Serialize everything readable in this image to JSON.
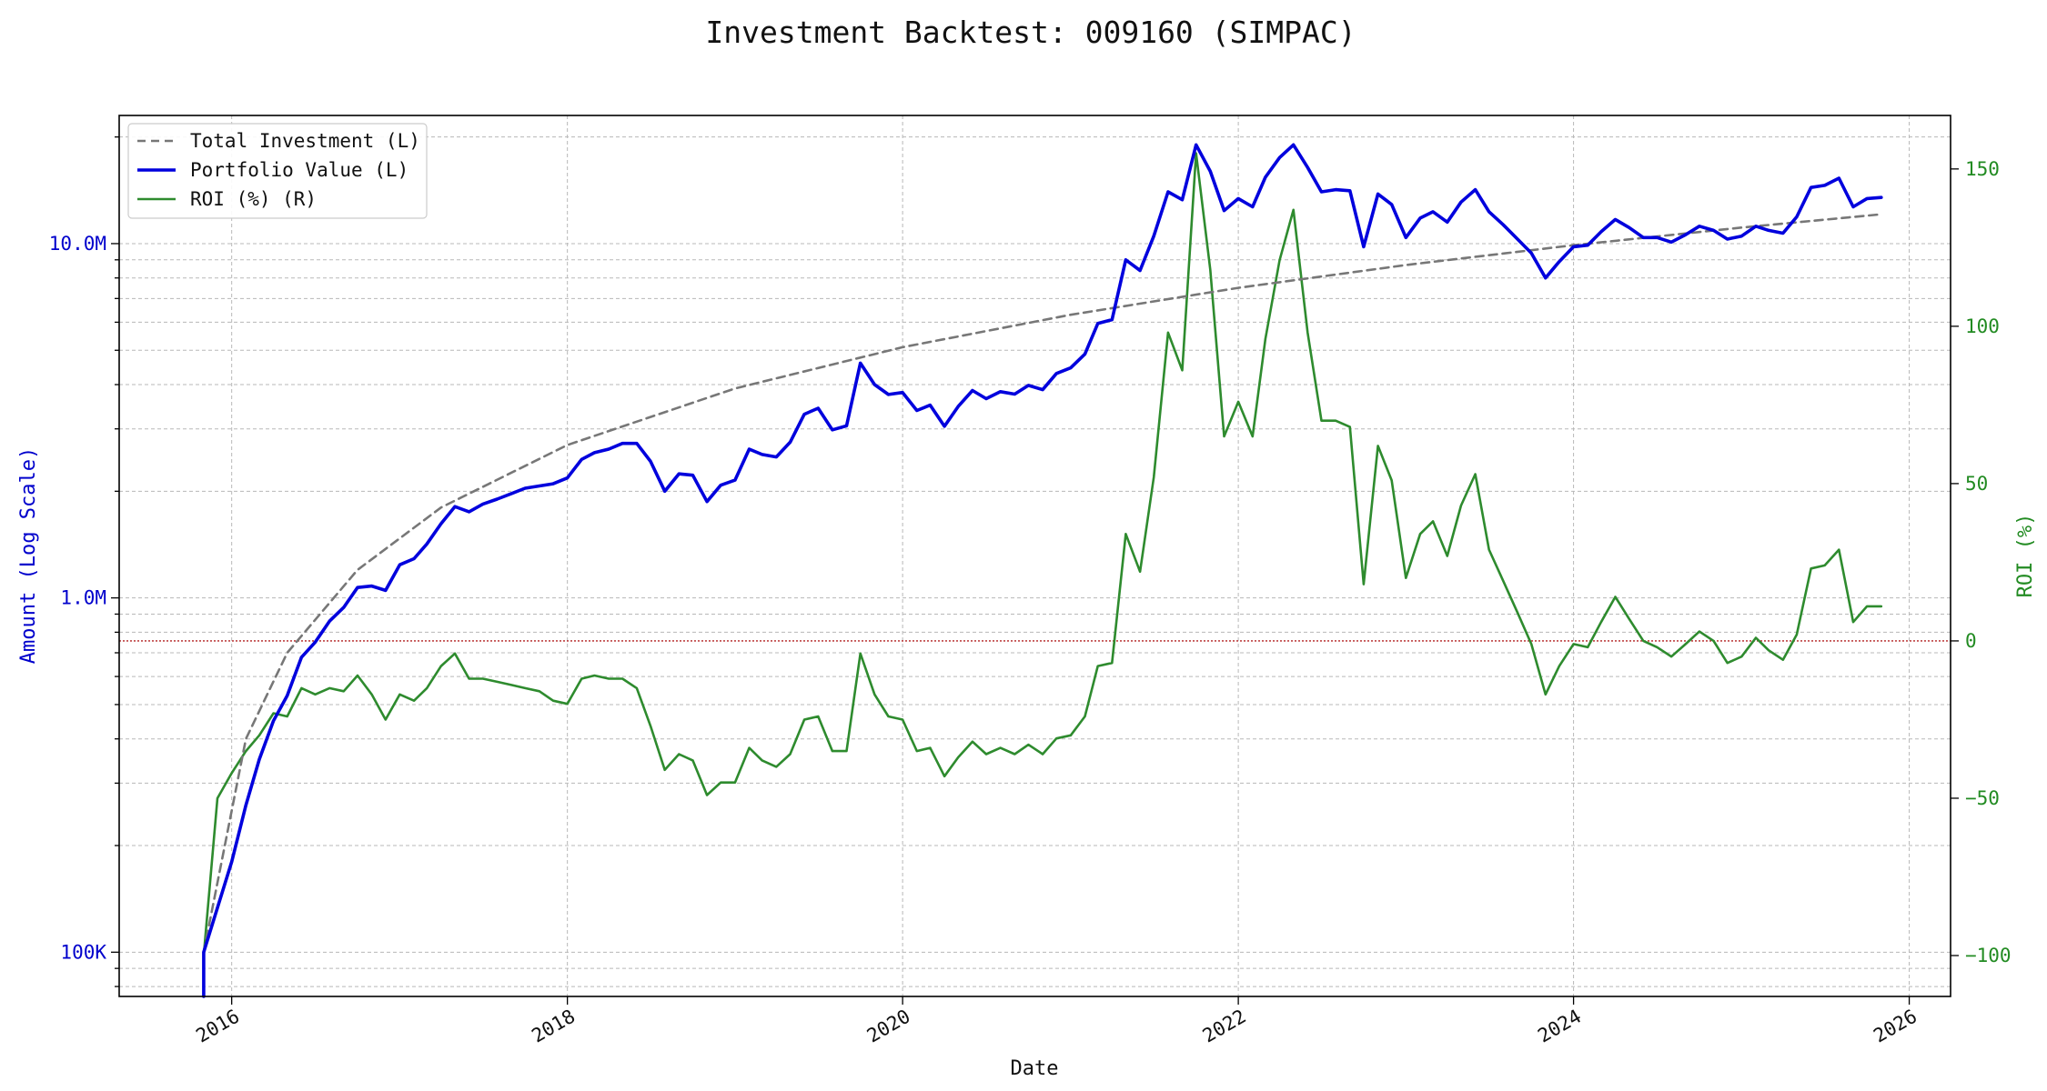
{
  "chart_data": {
    "type": "line",
    "title": "Investment Backtest: 009160 (SIMPAC)",
    "xlabel": "Date",
    "ylabel_left": "Amount (Log Scale)",
    "ylabel_right": "ROI (%)",
    "y_left_scale": "log",
    "y_left_range": [
      75000,
      23000000
    ],
    "y_left_ticks": [
      {
        "value": 100000,
        "label": "100K"
      },
      {
        "value": 1000000,
        "label": "1.0M"
      },
      {
        "value": 10000000,
        "label": "10.0M"
      }
    ],
    "y_right_range": [
      -113,
      167
    ],
    "y_right_ticks": [
      {
        "value": -100,
        "label": "−100"
      },
      {
        "value": -50,
        "label": "−50"
      },
      {
        "value": 0,
        "label": "0"
      },
      {
        "value": 50,
        "label": "50"
      },
      {
        "value": 100,
        "label": "100"
      },
      {
        "value": 150,
        "label": "150"
      }
    ],
    "x_range": [
      "2015-05-01",
      "2026-04-01"
    ],
    "x_ticks": [
      {
        "date": "2016-01-01",
        "label": "2016"
      },
      {
        "date": "2018-01-01",
        "label": "2018"
      },
      {
        "date": "2020-01-01",
        "label": "2020"
      },
      {
        "date": "2022-01-01",
        "label": "2022"
      },
      {
        "date": "2024-01-01",
        "label": "2024"
      },
      {
        "date": "2026-01-01",
        "label": "2026"
      }
    ],
    "grid": true,
    "legend_position": "top-left",
    "reference_line": {
      "axis": "right",
      "value": 0,
      "style": "dotted",
      "color": "#b22222"
    },
    "colors": {
      "total_investment": "#777777",
      "portfolio_value": "#0000dd",
      "roi": "#2e8b2e",
      "left_axis": "#0000cc",
      "right_axis": "#228b22"
    },
    "series": [
      {
        "name": "Total Investment (L)",
        "axis": "left",
        "style": "dashed",
        "points": [
          [
            "2015-11-01",
            100000
          ],
          [
            "2016-02-01",
            400000
          ],
          [
            "2016-05-01",
            700000
          ],
          [
            "2016-10-01",
            1200000
          ],
          [
            "2017-04-01",
            1800000
          ],
          [
            "2018-01-01",
            2700000
          ],
          [
            "2019-01-01",
            3900000
          ],
          [
            "2020-01-01",
            5100000
          ],
          [
            "2021-01-01",
            6300000
          ],
          [
            "2022-01-01",
            7500000
          ],
          [
            "2023-01-01",
            8700000
          ],
          [
            "2024-01-01",
            9900000
          ],
          [
            "2025-01-01",
            11100000
          ],
          [
            "2025-11-01",
            12100000
          ]
        ]
      },
      {
        "name": "Portfolio Value (L)",
        "axis": "left",
        "style": "solid",
        "points": [
          [
            "2015-11-01",
            20000
          ],
          [
            "2015-11-01",
            100000
          ],
          [
            "2016-01-01",
            180000
          ],
          [
            "2016-02-01",
            260000
          ],
          [
            "2016-03-01",
            350000
          ],
          [
            "2016-04-01",
            450000
          ],
          [
            "2016-05-01",
            530000
          ],
          [
            "2016-06-01",
            680000
          ],
          [
            "2016-07-01",
            750000
          ],
          [
            "2016-08-01",
            860000
          ],
          [
            "2016-09-01",
            940000
          ],
          [
            "2016-10-01",
            1070000
          ],
          [
            "2016-11-01",
            1080000
          ],
          [
            "2016-12-01",
            1050000
          ],
          [
            "2017-01-01",
            1240000
          ],
          [
            "2017-02-01",
            1290000
          ],
          [
            "2017-03-01",
            1420000
          ],
          [
            "2017-04-01",
            1620000
          ],
          [
            "2017-05-01",
            1810000
          ],
          [
            "2017-06-01",
            1750000
          ],
          [
            "2017-07-01",
            1840000
          ],
          [
            "2017-08-01",
            1900000
          ],
          [
            "2017-09-01",
            1970000
          ],
          [
            "2017-10-01",
            2040000
          ],
          [
            "2017-11-01",
            2070000
          ],
          [
            "2017-12-01",
            2100000
          ],
          [
            "2018-01-01",
            2180000
          ],
          [
            "2018-02-01",
            2460000
          ],
          [
            "2018-03-01",
            2570000
          ],
          [
            "2018-04-01",
            2630000
          ],
          [
            "2018-05-01",
            2730000
          ],
          [
            "2018-06-01",
            2730000
          ],
          [
            "2018-07-01",
            2430000
          ],
          [
            "2018-08-01",
            2000000
          ],
          [
            "2018-09-01",
            2240000
          ],
          [
            "2018-10-01",
            2220000
          ],
          [
            "2018-11-01",
            1870000
          ],
          [
            "2018-12-01",
            2080000
          ],
          [
            "2019-01-01",
            2150000
          ],
          [
            "2019-02-01",
            2630000
          ],
          [
            "2019-03-01",
            2540000
          ],
          [
            "2019-04-01",
            2500000
          ],
          [
            "2019-05-01",
            2750000
          ],
          [
            "2019-06-01",
            3300000
          ],
          [
            "2019-07-01",
            3430000
          ],
          [
            "2019-08-01",
            2980000
          ],
          [
            "2019-09-01",
            3060000
          ],
          [
            "2019-10-01",
            4600000
          ],
          [
            "2019-11-01",
            4000000
          ],
          [
            "2019-12-01",
            3750000
          ],
          [
            "2020-01-01",
            3800000
          ],
          [
            "2020-02-01",
            3380000
          ],
          [
            "2020-03-01",
            3500000
          ],
          [
            "2020-04-01",
            3050000
          ],
          [
            "2020-05-01",
            3470000
          ],
          [
            "2020-06-01",
            3850000
          ],
          [
            "2020-07-01",
            3650000
          ],
          [
            "2020-08-01",
            3820000
          ],
          [
            "2020-09-01",
            3760000
          ],
          [
            "2020-10-01",
            3980000
          ],
          [
            "2020-11-01",
            3870000
          ],
          [
            "2020-12-01",
            4300000
          ],
          [
            "2021-01-01",
            4460000
          ],
          [
            "2021-02-01",
            4880000
          ],
          [
            "2021-03-01",
            5950000
          ],
          [
            "2021-04-01",
            6100000
          ],
          [
            "2021-05-01",
            9000000
          ],
          [
            "2021-06-01",
            8400000
          ],
          [
            "2021-07-01",
            10500000
          ],
          [
            "2021-08-01",
            14000000
          ],
          [
            "2021-09-01",
            13300000
          ],
          [
            "2021-10-01",
            19000000
          ],
          [
            "2021-11-01",
            16000000
          ],
          [
            "2021-12-01",
            12400000
          ],
          [
            "2022-01-01",
            13400000
          ],
          [
            "2022-02-01",
            12700000
          ],
          [
            "2022-03-01",
            15400000
          ],
          [
            "2022-04-01",
            17500000
          ],
          [
            "2022-05-01",
            19000000
          ],
          [
            "2022-06-01",
            16400000
          ],
          [
            "2022-07-01",
            14000000
          ],
          [
            "2022-08-01",
            14200000
          ],
          [
            "2022-09-01",
            14100000
          ],
          [
            "2022-10-01",
            9800000
          ],
          [
            "2022-11-01",
            13800000
          ],
          [
            "2022-12-01",
            12900000
          ],
          [
            "2023-01-01",
            10400000
          ],
          [
            "2023-02-01",
            11800000
          ],
          [
            "2023-03-01",
            12300000
          ],
          [
            "2023-04-01",
            11500000
          ],
          [
            "2023-05-01",
            13100000
          ],
          [
            "2023-06-01",
            14200000
          ],
          [
            "2023-07-01",
            12300000
          ],
          [
            "2023-08-01",
            11300000
          ],
          [
            "2023-09-01",
            10300000
          ],
          [
            "2023-10-01",
            9400000
          ],
          [
            "2023-11-01",
            8000000
          ],
          [
            "2023-12-01",
            8900000
          ],
          [
            "2024-01-01",
            9800000
          ],
          [
            "2024-02-01",
            9900000
          ],
          [
            "2024-03-01",
            10800000
          ],
          [
            "2024-04-01",
            11700000
          ],
          [
            "2024-05-01",
            11100000
          ],
          [
            "2024-06-01",
            10400000
          ],
          [
            "2024-07-01",
            10400000
          ],
          [
            "2024-08-01",
            10100000
          ],
          [
            "2024-09-01",
            10600000
          ],
          [
            "2024-10-01",
            11200000
          ],
          [
            "2024-11-01",
            10900000
          ],
          [
            "2024-12-01",
            10300000
          ],
          [
            "2025-01-01",
            10500000
          ],
          [
            "2025-02-01",
            11200000
          ],
          [
            "2025-03-01",
            10900000
          ],
          [
            "2025-04-01",
            10700000
          ],
          [
            "2025-05-01",
            11900000
          ],
          [
            "2025-06-01",
            14400000
          ],
          [
            "2025-07-01",
            14600000
          ],
          [
            "2025-08-01",
            15300000
          ],
          [
            "2025-09-01",
            12700000
          ],
          [
            "2025-10-01",
            13400000
          ],
          [
            "2025-11-01",
            13500000
          ]
        ]
      },
      {
        "name": "ROI (%) (R)",
        "axis": "right",
        "style": "solid",
        "points": [
          [
            "2015-11-01",
            -100
          ],
          [
            "2015-12-01",
            -50
          ],
          [
            "2016-01-01",
            -42
          ],
          [
            "2016-02-01",
            -35
          ],
          [
            "2016-03-01",
            -30
          ],
          [
            "2016-04-01",
            -23
          ],
          [
            "2016-05-01",
            -24
          ],
          [
            "2016-06-01",
            -15
          ],
          [
            "2016-07-01",
            -17
          ],
          [
            "2016-08-01",
            -15
          ],
          [
            "2016-09-01",
            -16
          ],
          [
            "2016-10-01",
            -11
          ],
          [
            "2016-11-01",
            -17
          ],
          [
            "2016-12-01",
            -25
          ],
          [
            "2017-01-01",
            -17
          ],
          [
            "2017-02-01",
            -19
          ],
          [
            "2017-03-01",
            -15
          ],
          [
            "2017-04-01",
            -8
          ],
          [
            "2017-05-01",
            -4
          ],
          [
            "2017-06-01",
            -12
          ],
          [
            "2017-07-01",
            -12
          ],
          [
            "2017-08-01",
            -13
          ],
          [
            "2017-09-01",
            -14
          ],
          [
            "2017-10-01",
            -15
          ],
          [
            "2017-11-01",
            -16
          ],
          [
            "2017-12-01",
            -19
          ],
          [
            "2018-01-01",
            -20
          ],
          [
            "2018-02-01",
            -12
          ],
          [
            "2018-03-01",
            -11
          ],
          [
            "2018-04-01",
            -12
          ],
          [
            "2018-05-01",
            -12
          ],
          [
            "2018-06-01",
            -15
          ],
          [
            "2018-07-01",
            -27
          ],
          [
            "2018-08-01",
            -41
          ],
          [
            "2018-09-01",
            -36
          ],
          [
            "2018-10-01",
            -38
          ],
          [
            "2018-11-01",
            -49
          ],
          [
            "2018-12-01",
            -45
          ],
          [
            "2019-01-01",
            -45
          ],
          [
            "2019-02-01",
            -34
          ],
          [
            "2019-03-01",
            -38
          ],
          [
            "2019-04-01",
            -40
          ],
          [
            "2019-05-01",
            -36
          ],
          [
            "2019-06-01",
            -25
          ],
          [
            "2019-07-01",
            -24
          ],
          [
            "2019-08-01",
            -35
          ],
          [
            "2019-09-01",
            -35
          ],
          [
            "2019-10-01",
            -4
          ],
          [
            "2019-11-01",
            -17
          ],
          [
            "2019-12-01",
            -24
          ],
          [
            "2020-01-01",
            -25
          ],
          [
            "2020-02-01",
            -35
          ],
          [
            "2020-03-01",
            -34
          ],
          [
            "2020-04-01",
            -43
          ],
          [
            "2020-05-01",
            -37
          ],
          [
            "2020-06-01",
            -32
          ],
          [
            "2020-07-01",
            -36
          ],
          [
            "2020-08-01",
            -34
          ],
          [
            "2020-09-01",
            -36
          ],
          [
            "2020-10-01",
            -33
          ],
          [
            "2020-11-01",
            -36
          ],
          [
            "2020-12-01",
            -31
          ],
          [
            "2021-01-01",
            -30
          ],
          [
            "2021-02-01",
            -24
          ],
          [
            "2021-03-01",
            -8
          ],
          [
            "2021-04-01",
            -7
          ],
          [
            "2021-05-01",
            34
          ],
          [
            "2021-06-01",
            22
          ],
          [
            "2021-07-01",
            52
          ],
          [
            "2021-08-01",
            98
          ],
          [
            "2021-09-01",
            86
          ],
          [
            "2021-10-01",
            155
          ],
          [
            "2021-11-01",
            118
          ],
          [
            "2021-12-01",
            65
          ],
          [
            "2022-01-01",
            76
          ],
          [
            "2022-02-01",
            65
          ],
          [
            "2022-03-01",
            96
          ],
          [
            "2022-04-01",
            121
          ],
          [
            "2022-05-01",
            137
          ],
          [
            "2022-06-01",
            98
          ],
          [
            "2022-07-01",
            70
          ],
          [
            "2022-08-01",
            70
          ],
          [
            "2022-09-01",
            68
          ],
          [
            "2022-10-01",
            18
          ],
          [
            "2022-11-01",
            62
          ],
          [
            "2022-12-01",
            51
          ],
          [
            "2023-01-01",
            20
          ],
          [
            "2023-02-01",
            34
          ],
          [
            "2023-03-01",
            38
          ],
          [
            "2023-04-01",
            27
          ],
          [
            "2023-05-01",
            43
          ],
          [
            "2023-06-01",
            53
          ],
          [
            "2023-07-01",
            29
          ],
          [
            "2023-08-01",
            19
          ],
          [
            "2023-09-01",
            9
          ],
          [
            "2023-10-01",
            -1
          ],
          [
            "2023-11-01",
            -17
          ],
          [
            "2023-12-01",
            -8
          ],
          [
            "2024-01-01",
            -1
          ],
          [
            "2024-02-01",
            -2
          ],
          [
            "2024-03-01",
            6
          ],
          [
            "2024-04-01",
            14
          ],
          [
            "2024-05-01",
            7
          ],
          [
            "2024-06-01",
            0
          ],
          [
            "2024-07-01",
            -2
          ],
          [
            "2024-08-01",
            -5
          ],
          [
            "2024-09-01",
            -1
          ],
          [
            "2024-10-01",
            3
          ],
          [
            "2024-11-01",
            0
          ],
          [
            "2024-12-01",
            -7
          ],
          [
            "2025-01-01",
            -5
          ],
          [
            "2025-02-01",
            1
          ],
          [
            "2025-03-01",
            -3
          ],
          [
            "2025-04-01",
            -6
          ],
          [
            "2025-05-01",
            2
          ],
          [
            "2025-06-01",
            23
          ],
          [
            "2025-07-01",
            24
          ],
          [
            "2025-08-01",
            29
          ],
          [
            "2025-09-01",
            6
          ],
          [
            "2025-10-01",
            11
          ],
          [
            "2025-11-01",
            11
          ]
        ]
      }
    ]
  }
}
